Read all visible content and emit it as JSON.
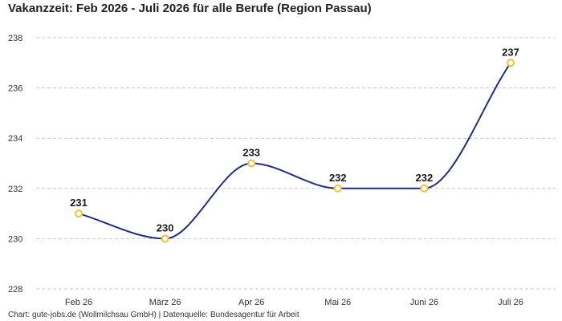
{
  "title": "Vakanzzeit: Feb 2026 - Juli 2026 für alle Berufe (Region Passau)",
  "footer": "Chart: gute-jobs.de (Wollmilchsau GmbH) | Datenquelle: Bundesagentur für Arbeit",
  "colors": {
    "line": "#1f2d8a",
    "marker_stroke": "#f2c230",
    "marker_fill": "#ffffff",
    "grid": "#c8c8c8"
  },
  "chart_data": {
    "type": "line",
    "categories": [
      "Feb 26",
      "März 26",
      "Apr 26",
      "Mai 26",
      "Juni 26",
      "Juli 26"
    ],
    "values": [
      231,
      230,
      233,
      232,
      232,
      237
    ],
    "data_labels": [
      "231",
      "230",
      "233",
      "232",
      "232",
      "237"
    ],
    "yticks": [
      "228",
      "230",
      "232",
      "234",
      "236",
      "238"
    ],
    "ylim": [
      228,
      238
    ],
    "grid": true,
    "legend": "none",
    "xlabel": "",
    "ylabel": ""
  }
}
